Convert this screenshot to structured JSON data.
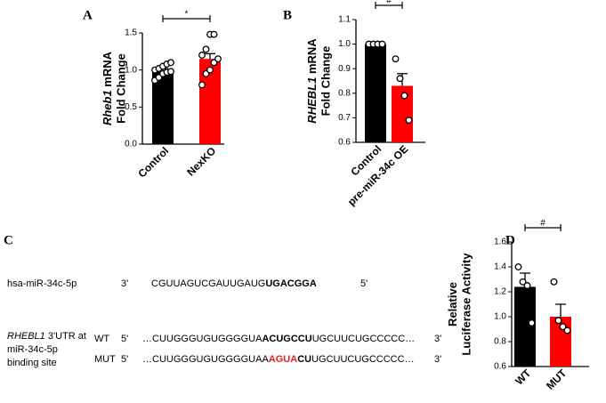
{
  "chart_data": [
    {
      "type": "bar",
      "panel": "A",
      "ylabel_gene": "Rheb1",
      "ylabel_rest": "mRNA",
      "ylabel_line2": "Fold Change",
      "categories": [
        "Control",
        "NexKO"
      ],
      "values": [
        0.98,
        1.15
      ],
      "errors": [
        0.04,
        0.07
      ],
      "colors": [
        "#000000",
        "#ff0000"
      ],
      "points": [
        [
          0.86,
          0.9,
          0.95,
          0.97,
          0.98,
          1.0,
          1.02,
          1.05,
          1.08,
          1.1
        ],
        [
          0.8,
          0.95,
          1.0,
          1.1,
          1.15,
          1.2,
          1.28,
          1.48,
          1.48
        ]
      ],
      "ylim": [
        0,
        1.5
      ],
      "yticks": [
        {
          "value": 0,
          "label": "0.0"
        },
        0.5,
        {
          "value": 1,
          "label": "1.0"
        },
        1.5
      ],
      "significance": "*"
    },
    {
      "type": "bar",
      "panel": "B",
      "ylabel_gene": "RHEBL1",
      "ylabel_rest": "mRNA",
      "ylabel_line2": "Fold Change",
      "categories": [
        "Control",
        "pre-miR-34c OE"
      ],
      "values": [
        1.0,
        0.83
      ],
      "errors": [
        0,
        0.05
      ],
      "colors": [
        "#000000",
        "#ff0000"
      ],
      "points": [
        [
          1.0,
          1.0,
          1.0,
          1.0
        ],
        [
          0.94,
          0.86,
          0.79,
          0.69
        ]
      ],
      "ylim": [
        0.6,
        1.1
      ],
      "yticks": [
        0.6,
        0.7,
        0.8,
        0.9,
        {
          "value": 1,
          "label": "1.0"
        },
        1.1
      ],
      "significance": "#"
    },
    {
      "type": "bar",
      "panel": "D",
      "ylabel_gene": "Relative",
      "ylabel_rest": "",
      "ylabel_line2": "Luciferase Activity",
      "categories": [
        "WT",
        "MUT"
      ],
      "values": [
        1.24,
        1.0
      ],
      "errors": [
        0.11,
        0.1
      ],
      "colors": [
        "#000000",
        "#ff0000"
      ],
      "points": [
        [
          1.4,
          1.28,
          1.25,
          0.95
        ],
        [
          1.28,
          0.97,
          0.92,
          0.89
        ]
      ],
      "ylim": [
        0.6,
        1.6
      ],
      "yticks": [
        0.6,
        0.8,
        {
          "value": 1,
          "label": "1.0"
        },
        1.2,
        1.4,
        1.6
      ],
      "significance": "#"
    }
  ],
  "sequence_panel": {
    "panel": "C",
    "mirna": {
      "label": "hsa-miR-34c-5p",
      "end_left": "3'",
      "seq_plain": "CGUUAGUCGAUUGAUG",
      "seq_bold": "UGACGGA",
      "end_right": "5'"
    },
    "utr_label": {
      "gene": "RHEBL1",
      "rest": "3'UTR at",
      "line2": "miR-34c-5p",
      "line3": "binding site"
    },
    "wt": {
      "name": "WT",
      "end_left": "5'",
      "pre": "…CUUGGGUGUGGGGUA",
      "bold": "ACUGCCU",
      "post": "UGCUUCUGCCCCC…",
      "end_right": "3'"
    },
    "mut": {
      "name": "MUT",
      "end_left": "5'",
      "pre": "…CUUGGGUGUGGGGUAA",
      "red": "AGUA",
      "bold": "CU",
      "post": "UGCUUCUGCCCCC…",
      "end_right": "3'"
    }
  }
}
